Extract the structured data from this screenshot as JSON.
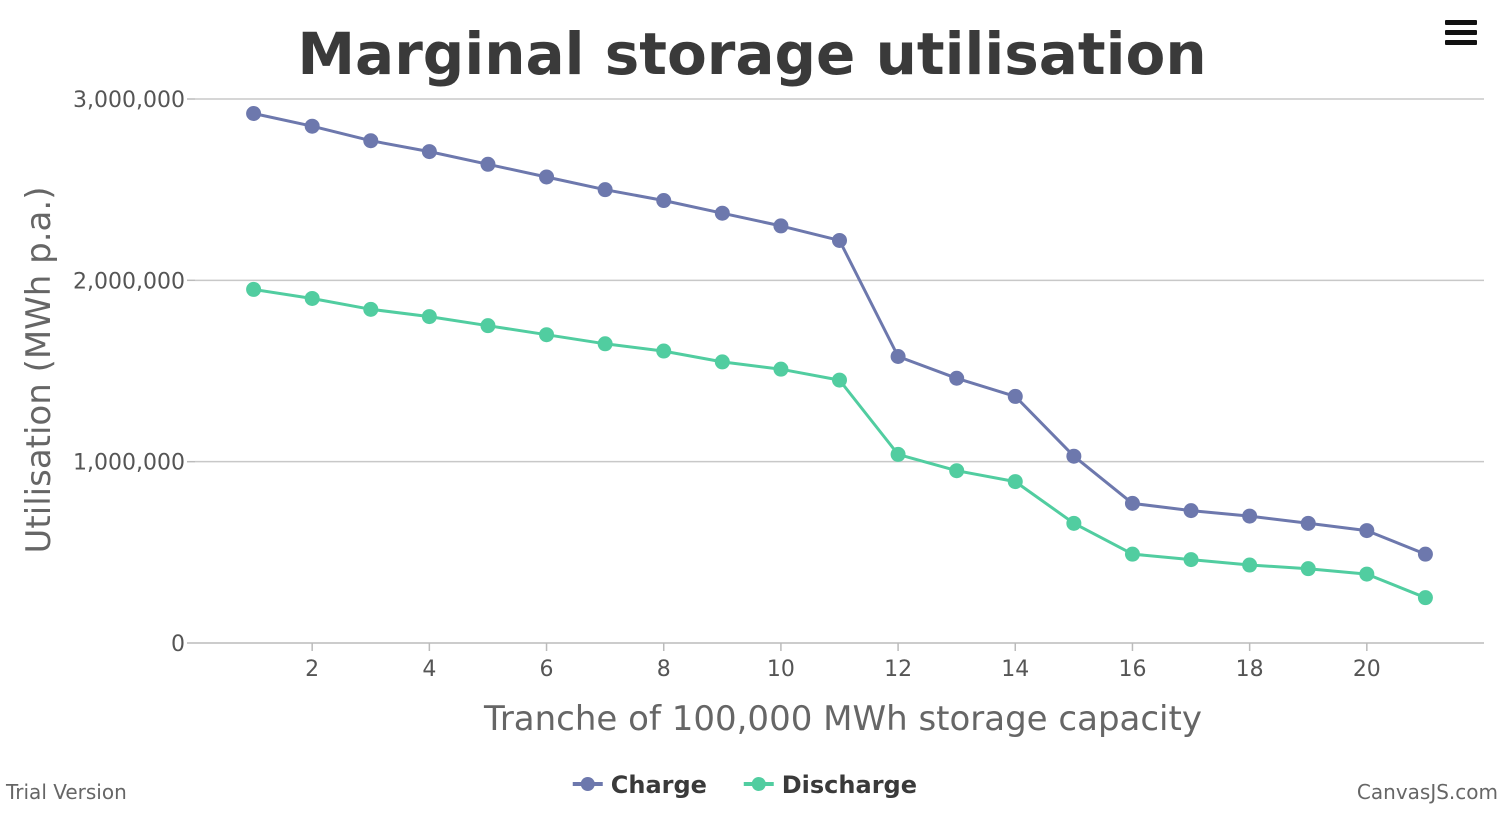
{
  "chart_data": {
    "type": "line",
    "title": "Marginal storage utilisation",
    "xlabel": "Tranche of 100,000 MWh storage capacity",
    "ylabel": "Utilisation (MWh p.a.)",
    "xlim": [
      0,
      22
    ],
    "ylim": [
      0,
      3000000
    ],
    "x_ticks": [
      2,
      4,
      6,
      8,
      10,
      12,
      14,
      16,
      18,
      20
    ],
    "y_ticks": [
      0,
      1000000,
      2000000,
      3000000
    ],
    "y_tick_labels": [
      "0",
      "1,000,000",
      "2,000,000",
      "3,000,000"
    ],
    "grid": "horizontal",
    "legend_position": "bottom",
    "x": [
      1,
      2,
      3,
      4,
      5,
      6,
      7,
      8,
      9,
      10,
      11,
      12,
      13,
      14,
      15,
      16,
      17,
      18,
      19,
      20,
      21
    ],
    "series": [
      {
        "name": "Charge",
        "color": "#6d78ad",
        "values": [
          2920000,
          2850000,
          2770000,
          2710000,
          2640000,
          2570000,
          2500000,
          2440000,
          2370000,
          2300000,
          2220000,
          1580000,
          1460000,
          1360000,
          1030000,
          770000,
          730000,
          700000,
          660000,
          620000,
          490000
        ]
      },
      {
        "name": "Discharge",
        "color": "#51cda0",
        "values": [
          1950000,
          1900000,
          1840000,
          1800000,
          1750000,
          1700000,
          1650000,
          1610000,
          1550000,
          1510000,
          1450000,
          1040000,
          950000,
          890000,
          660000,
          490000,
          460000,
          430000,
          410000,
          380000,
          250000
        ]
      }
    ]
  },
  "footer": {
    "trial_label": "Trial Version",
    "brand_label": "CanvasJS.com"
  },
  "menu_icon": "hamburger-icon"
}
